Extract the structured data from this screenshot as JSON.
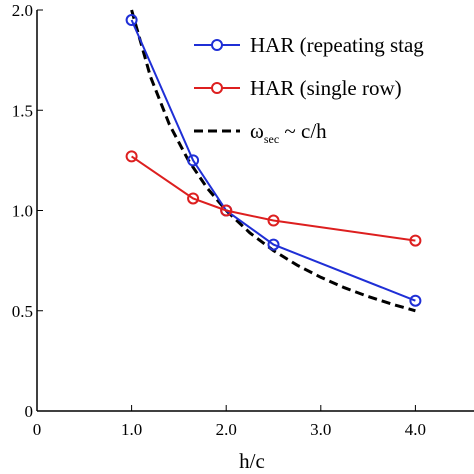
{
  "chart_data": {
    "type": "line",
    "xlabel": "h/c",
    "ylabel": "",
    "xlim": [
      0,
      5
    ],
    "ylim": [
      0,
      2.0
    ],
    "xticks": [
      "0",
      "1.0",
      "2.0",
      "3.0",
      "4.0"
    ],
    "xtick_values": [
      0,
      1,
      2,
      3,
      4
    ],
    "yticks": [
      "0",
      "0.5",
      "1.0",
      "1.5",
      "2.0"
    ],
    "ytick_values": [
      0,
      0.5,
      1.0,
      1.5,
      2.0
    ],
    "legend_position": "top-right",
    "grid": false,
    "series": [
      {
        "name": "HAR (repeating stag",
        "style": "line-circle",
        "color": "#1f2fd6",
        "x": [
          1.0,
          1.65,
          2.0,
          2.5,
          4.0
        ],
        "y": [
          1.95,
          1.25,
          1.0,
          0.83,
          0.55
        ]
      },
      {
        "name": "HAR (single row)",
        "style": "line-circle",
        "color": "#dd1f1f",
        "x": [
          1.0,
          1.65,
          2.0,
          2.5,
          4.0
        ],
        "y": [
          1.27,
          1.06,
          1.0,
          0.95,
          0.85
        ]
      },
      {
        "name": "ω_sec ~ c/h",
        "style": "dashed",
        "color": "#000000",
        "x": [
          1.0,
          1.2,
          1.4,
          1.6,
          1.8,
          2.0,
          2.25,
          2.5,
          2.75,
          3.0,
          3.25,
          3.5,
          3.75,
          4.0
        ],
        "y": [
          2.0,
          1.667,
          1.429,
          1.25,
          1.111,
          1.0,
          0.889,
          0.8,
          0.727,
          0.667,
          0.615,
          0.571,
          0.533,
          0.5
        ]
      }
    ],
    "legend": [
      {
        "label_main": "HAR (repeating stag",
        "marker": "line-circle",
        "color": "#1f2fd6"
      },
      {
        "label_main": "HAR (single row)",
        "marker": "line-circle",
        "color": "#dd1f1f"
      },
      {
        "label_omega": "ω",
        "label_sub": "sec",
        "label_rest": " ~ c/h",
        "marker": "dashed",
        "color": "#000000"
      }
    ]
  }
}
